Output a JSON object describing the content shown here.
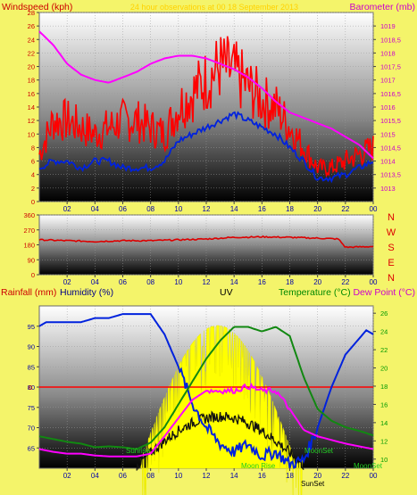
{
  "header": {
    "left_title": "Windspeed (kph)",
    "center_title": "24 hour observations at 00 18 September 2013",
    "right_title": "Barometer (mb)"
  },
  "compass": {
    "labels": [
      "N",
      "W",
      "S",
      "E",
      "N"
    ]
  },
  "lower_header": {
    "rainfall": "Rainfall (mm)",
    "humidity": "Humidity (%)",
    "uv": "UV",
    "temperature": "Temperature (°C)",
    "dewpoint": "Dew Point (°C)"
  },
  "events": {
    "sunrise": "Sunrise",
    "sunset": "SunSet",
    "moonrise": "Moon Rise",
    "moonset": "MoonSet",
    "moonset2": "MoonSet"
  },
  "colors": {
    "background": "#f4f46a",
    "wind": "#ff0000",
    "gust": "#dd0000",
    "avgwind": "#0022dd",
    "barometer": "#ff00ff",
    "direction": "#dd0000",
    "humidity": "#0022dd",
    "temperature": "#118811",
    "dewpoint": "#ff00ff",
    "uv": "#ffff00",
    "solar": "#111111",
    "rain": "#ff0000",
    "axis_red": "#cc0000",
    "axis_magenta": "#cc00cc",
    "axis_blue": "#0000aa",
    "axis_green": "#009900"
  },
  "chart_data": [
    {
      "id": "wind-baro",
      "type": "line",
      "x_ticks": [
        "02",
        "04",
        "06",
        "08",
        "10",
        "12",
        "14",
        "16",
        "18",
        "20",
        "22",
        "00"
      ],
      "ylim_left": [
        0,
        28
      ],
      "y_ticks_left": [
        0,
        2,
        4,
        6,
        8,
        10,
        12,
        14,
        16,
        18,
        20,
        22,
        24,
        26,
        28
      ],
      "ylim_right": [
        1012.5,
        1019.5
      ],
      "y_ticks_right": [
        "1013",
        "1013,5",
        "1014",
        "1014,5",
        "1015",
        "1015,5",
        "1016",
        "1016,5",
        "1017",
        "1017,5",
        "1018",
        "1018,5",
        "1019"
      ],
      "series": [
        {
          "key": "gust",
          "axis": "left",
          "x": [
            0,
            1,
            2,
            3,
            4,
            5,
            6,
            7,
            8,
            9,
            10,
            11,
            12,
            13,
            14,
            15,
            16,
            17,
            18,
            19,
            20,
            21,
            22,
            23,
            24
          ],
          "values": [
            7,
            12,
            12,
            11,
            10,
            11,
            12,
            12,
            11,
            10,
            14,
            16,
            18,
            20,
            19,
            17,
            15,
            14,
            11,
            8,
            5,
            5,
            6,
            7,
            8
          ]
        },
        {
          "key": "avgwind",
          "axis": "left",
          "x": [
            0,
            1,
            2,
            3,
            4,
            5,
            6,
            7,
            8,
            9,
            10,
            11,
            12,
            13,
            14,
            15,
            16,
            17,
            18,
            19,
            20,
            21,
            22,
            23,
            24
          ],
          "values": [
            5,
            6,
            6,
            5,
            6,
            6,
            5,
            5,
            5,
            6,
            9,
            10,
            11,
            12,
            13,
            12,
            11,
            10,
            8,
            6,
            3.5,
            3.5,
            4,
            5,
            6
          ]
        },
        {
          "key": "barometer",
          "axis": "right",
          "x": [
            0,
            1,
            2,
            3,
            4,
            5,
            6,
            7,
            8,
            9,
            10,
            11,
            12,
            13,
            14,
            15,
            16,
            17,
            18,
            19,
            20,
            21,
            22,
            23,
            24
          ],
          "values": [
            1018.8,
            1018.3,
            1017.6,
            1017.2,
            1017.0,
            1016.9,
            1017.1,
            1017.3,
            1017.6,
            1017.8,
            1017.9,
            1017.9,
            1017.8,
            1017.6,
            1017.4,
            1017.1,
            1016.7,
            1016.2,
            1015.8,
            1015.6,
            1015.4,
            1015.2,
            1014.9,
            1014.6,
            1014.1
          ]
        }
      ]
    },
    {
      "id": "direction",
      "type": "line",
      "x_ticks": [
        "02",
        "04",
        "06",
        "08",
        "10",
        "12",
        "14",
        "16",
        "18",
        "20",
        "22",
        "00"
      ],
      "ylim": [
        0,
        360
      ],
      "y_ticks": [
        0,
        90,
        180,
        270,
        360
      ],
      "series": [
        {
          "key": "direction",
          "x": [
            0,
            2,
            4,
            6,
            8,
            10,
            12,
            14,
            16,
            18,
            20,
            21.5,
            22,
            24
          ],
          "values": [
            210,
            205,
            200,
            205,
            205,
            210,
            215,
            225,
            228,
            225,
            220,
            215,
            165,
            170
          ]
        }
      ]
    },
    {
      "id": "temp-hum",
      "type": "line",
      "x_ticks": [
        "02",
        "04",
        "06",
        "08",
        "10",
        "12",
        "14",
        "16",
        "18",
        "20",
        "22",
        "00"
      ],
      "ylim_left": [
        60,
        100
      ],
      "y_ticks_left": [
        65,
        70,
        75,
        80,
        85,
        90,
        95
      ],
      "rain_label": "0",
      "ylim_right": [
        9,
        26.8
      ],
      "y_ticks_right": [
        10,
        12,
        14,
        16,
        18,
        20,
        22,
        24,
        26
      ],
      "series": [
        {
          "key": "humidity",
          "axis": "left",
          "x": [
            0,
            0.5,
            1,
            2,
            3,
            4,
            5,
            6,
            7,
            8,
            9,
            10,
            11,
            12,
            13,
            14,
            15,
            16,
            17,
            18,
            19,
            20,
            21,
            22,
            23,
            23.5,
            24
          ],
          "values": [
            95,
            96,
            96,
            96,
            96,
            97,
            97,
            98,
            98,
            98,
            93,
            85,
            76,
            70,
            66,
            64,
            66,
            63,
            64,
            61,
            62,
            70,
            80,
            88,
            92,
            94,
            93
          ]
        },
        {
          "key": "temperature",
          "axis": "right",
          "x": [
            0,
            1,
            2,
            3,
            4,
            5,
            6,
            7,
            8,
            9,
            10,
            11,
            12,
            13,
            14,
            15,
            16,
            17,
            18,
            19,
            20,
            21,
            22,
            23,
            24
          ],
          "values": [
            12.5,
            12.2,
            11.9,
            11.7,
            11.3,
            11.4,
            11.3,
            11.1,
            11.8,
            13.5,
            16,
            18.5,
            21,
            23,
            24.5,
            24.5,
            24,
            24.5,
            23.5,
            19,
            15.5,
            14.2,
            13.5,
            13.1,
            12.6
          ]
        },
        {
          "key": "dewpoint",
          "axis": "right",
          "x": [
            0,
            1,
            2,
            3,
            4,
            5,
            6,
            7,
            8,
            9,
            10,
            11,
            12,
            13,
            14,
            15,
            16,
            17,
            18,
            19,
            20,
            21,
            22,
            23,
            24
          ],
          "values": [
            11.1,
            10.8,
            10.6,
            10.6,
            10.4,
            10.3,
            10.3,
            10.3,
            10.6,
            12.5,
            14.5,
            16.5,
            17.5,
            17.5,
            17.5,
            18,
            17.5,
            17.5,
            15.5,
            13.2,
            12.5,
            12.1,
            11.7,
            11.4,
            11.1
          ]
        }
      ]
    }
  ]
}
